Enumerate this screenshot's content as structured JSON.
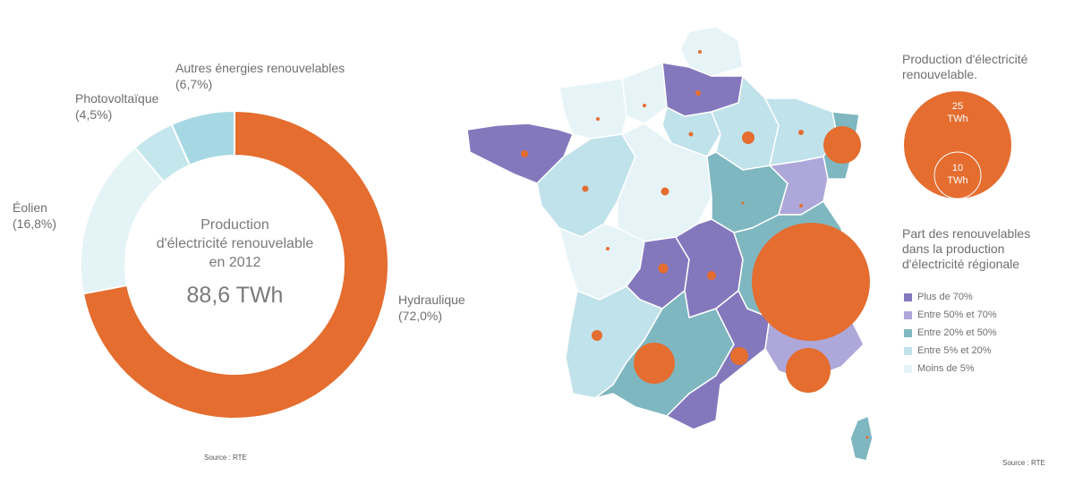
{
  "chart_data": [
    {
      "type": "pie",
      "donut": true,
      "center_title_lines": [
        "Production",
        "d'électricité renouvelable",
        "en 2012"
      ],
      "center_value": "88,6 TWh",
      "slices": [
        {
          "name": "Hydraulique",
          "value": 72.0,
          "label": "(72,0%)",
          "color": "#e46d2f"
        },
        {
          "name": "Éolien",
          "value": 16.8,
          "label": "(16,8%)",
          "color": "#e3f3f6"
        },
        {
          "name": "Photovoltaïque",
          "value": 4.5,
          "label": "(4,5%)",
          "color": "#c4e6ed"
        },
        {
          "name": "Autres énergies renouvelables",
          "value": 6.7,
          "label": "(6,7%)",
          "color": "#a6d8e3"
        }
      ],
      "source": "Source : RTE"
    },
    {
      "type": "map",
      "bubble_legend_title_lines": [
        "Production d'électricité",
        "renouvelable."
      ],
      "bubble_legend": [
        {
          "value": 25,
          "label_lines": [
            "25",
            "TWh"
          ]
        },
        {
          "value": 10,
          "label_lines": [
            "10",
            "TWh"
          ]
        }
      ],
      "choropleth_legend_title_lines": [
        "Part des renouvelables",
        "dans la production",
        "d'électricité régionale"
      ],
      "choropleth_classes": [
        {
          "label": "Plus de 70%",
          "color": "#8478bd"
        },
        {
          "label": "Entre 50% et 70%",
          "color": "#aea7da"
        },
        {
          "label": "Entre 20% et 50%",
          "color": "#7fb7c1"
        },
        {
          "label": "Entre 5% et 20%",
          "color": "#c0e2ea"
        },
        {
          "label": "Moins de 5%",
          "color": "#e6f4f7"
        }
      ],
      "bubble_color": "#e46d2f",
      "source": "Source : RTE"
    }
  ]
}
